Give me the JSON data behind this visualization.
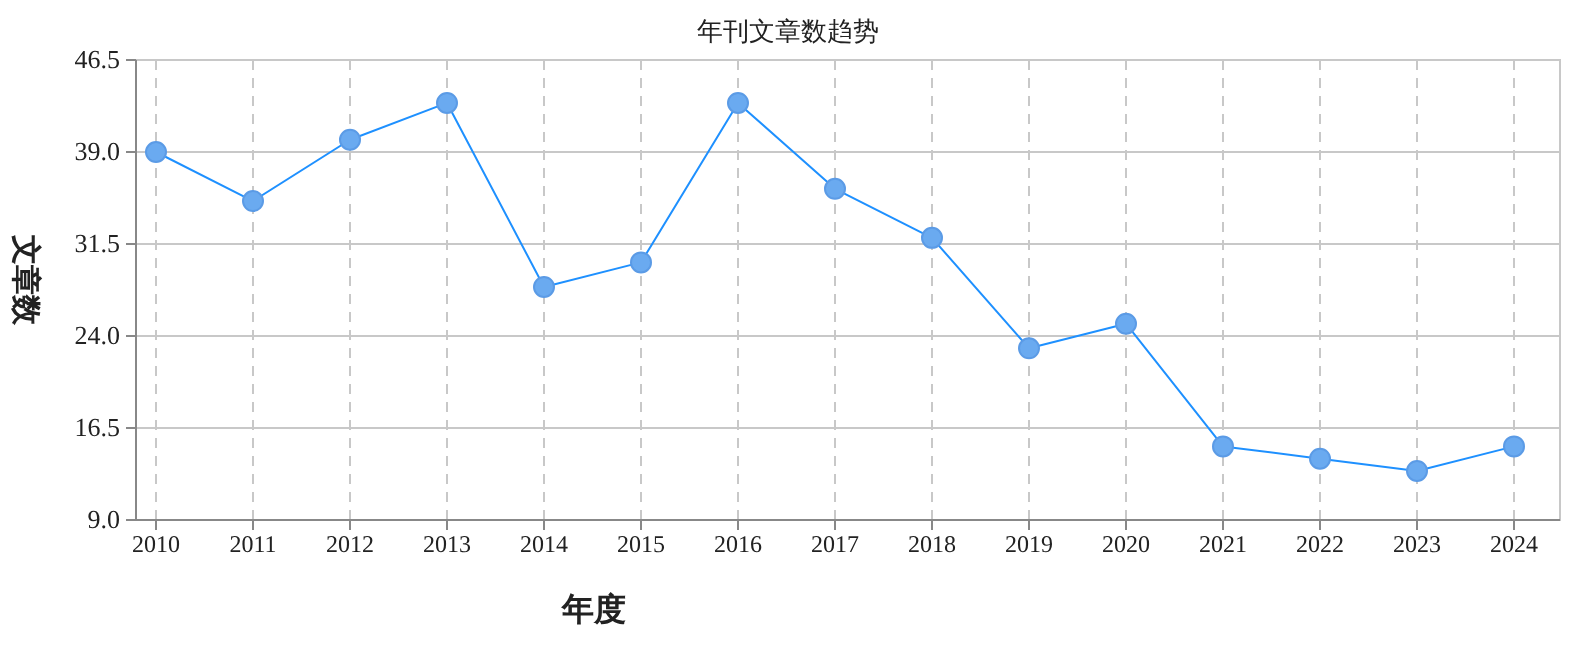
{
  "chart_data": {
    "type": "line",
    "title": "年刊文章数趋势",
    "xlabel": "年度",
    "ylabel": "文章数",
    "categories": [
      "2010",
      "2011",
      "2012",
      "2013",
      "2014",
      "2015",
      "2016",
      "2017",
      "2018",
      "2019",
      "2020",
      "2021",
      "2022",
      "2023",
      "2024"
    ],
    "series": [
      {
        "color": "#1e90ff",
        "values": [
          39,
          35,
          40,
          43,
          28,
          30,
          43,
          36,
          32,
          23,
          25,
          15,
          14,
          13,
          15
        ]
      }
    ],
    "ylim": [
      9,
      46.5
    ],
    "yticks": [
      {
        "value": 9,
        "label": "9.0"
      },
      {
        "value": 16.5,
        "label": "16.5"
      },
      {
        "value": 24,
        "label": "24.0"
      },
      {
        "value": 31.5,
        "label": "31.5"
      },
      {
        "value": 39,
        "label": "39.0"
      },
      {
        "value": 46.5,
        "label": "46.5"
      }
    ],
    "grid": true,
    "marker": "circle",
    "line_style": "solid"
  }
}
